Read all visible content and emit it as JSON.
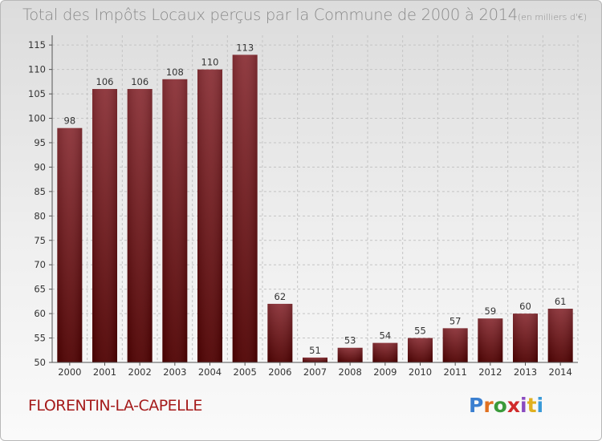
{
  "chart_data": {
    "type": "bar",
    "title": "Total des Impôts Locaux perçus par la Commune de 2000 à 2014",
    "unit_label": "(en milliers d'€)",
    "categories": [
      "2000",
      "2001",
      "2002",
      "2003",
      "2004",
      "2005",
      "2006",
      "2007",
      "2008",
      "2009",
      "2010",
      "2011",
      "2012",
      "2013",
      "2014"
    ],
    "values": [
      98,
      106,
      106,
      108,
      110,
      113,
      62,
      51,
      53,
      54,
      55,
      57,
      59,
      60,
      61
    ],
    "ylim": [
      50,
      117
    ],
    "yticks": [
      50,
      55,
      60,
      65,
      70,
      75,
      80,
      85,
      90,
      95,
      100,
      105,
      110,
      115
    ],
    "grid": true,
    "bar_color": "#7a1f25"
  },
  "commune_name": "FLORENTIN-LA-CAPELLE",
  "logo": {
    "letters": [
      "P",
      "r",
      "o",
      "x",
      "i",
      "t",
      "i"
    ],
    "colors": [
      "#3a7fd0",
      "#e07020",
      "#3a9a3a",
      "#d02a2a",
      "#8a4ac0",
      "#e0b020",
      "#3a9ad8"
    ]
  }
}
